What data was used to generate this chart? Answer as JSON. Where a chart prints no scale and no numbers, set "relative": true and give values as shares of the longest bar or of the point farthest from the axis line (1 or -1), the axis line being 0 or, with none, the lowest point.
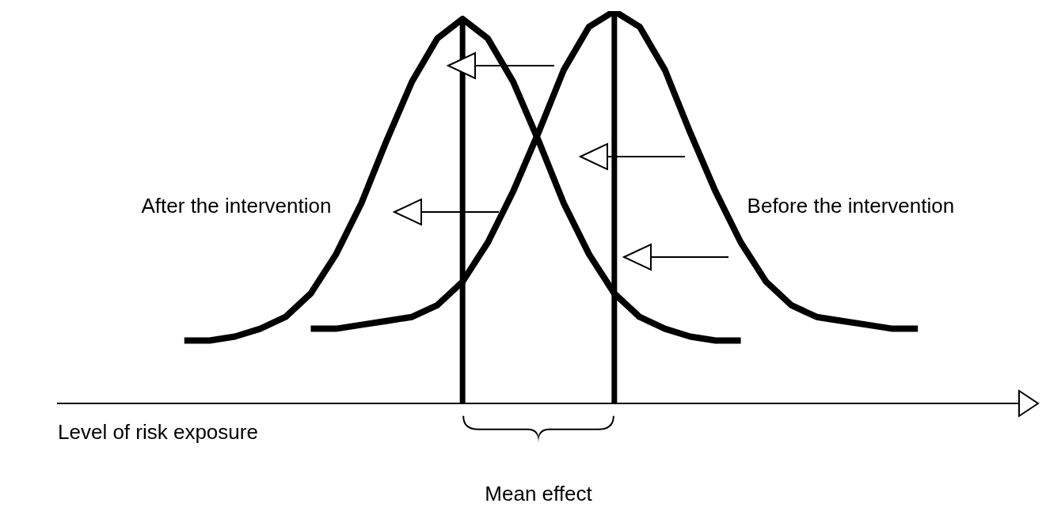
{
  "chart_data": {
    "type": "line",
    "relative": true,
    "xlabel": "Level of risk exposure",
    "legend": false,
    "marker": "none",
    "line_style": "solid",
    "categories": [
      null,
      null,
      null,
      null,
      null,
      null,
      null,
      null,
      null,
      null,
      null,
      null,
      null,
      null,
      null,
      null,
      null,
      null,
      null,
      null,
      null,
      null,
      null,
      null,
      null,
      null,
      null,
      null,
      null,
      null,
      null,
      null,
      null,
      null,
      null,
      null,
      null,
      null,
      null
    ],
    "series": [
      {
        "name": "After the intervention",
        "color": "#000000",
        "values": [
          null,
          null,
          null,
          null,
          null,
          0.16,
          0.16,
          0.17,
          0.19,
          0.22,
          0.28,
          0.38,
          0.51,
          0.67,
          0.82,
          0.93,
          0.98,
          0.93,
          0.82,
          0.67,
          0.51,
          0.38,
          0.28,
          0.22,
          0.19,
          0.17,
          0.16,
          0.16,
          null,
          null,
          null,
          null,
          null,
          null,
          null,
          null,
          null,
          null,
          null
        ]
      },
      {
        "name": "Before the intervention",
        "color": "#000000",
        "values": [
          null,
          null,
          null,
          null,
          null,
          null,
          null,
          null,
          null,
          null,
          0.19,
          0.19,
          0.2,
          0.21,
          0.22,
          0.25,
          0.31,
          0.41,
          0.54,
          0.69,
          0.85,
          0.96,
          1,
          0.96,
          0.85,
          0.69,
          0.54,
          0.41,
          0.31,
          0.25,
          0.22,
          0.21,
          0.2,
          0.19,
          0.19,
          null,
          null,
          null,
          null
        ]
      }
    ],
    "annotations": [
      "Mean effect"
    ]
  }
}
